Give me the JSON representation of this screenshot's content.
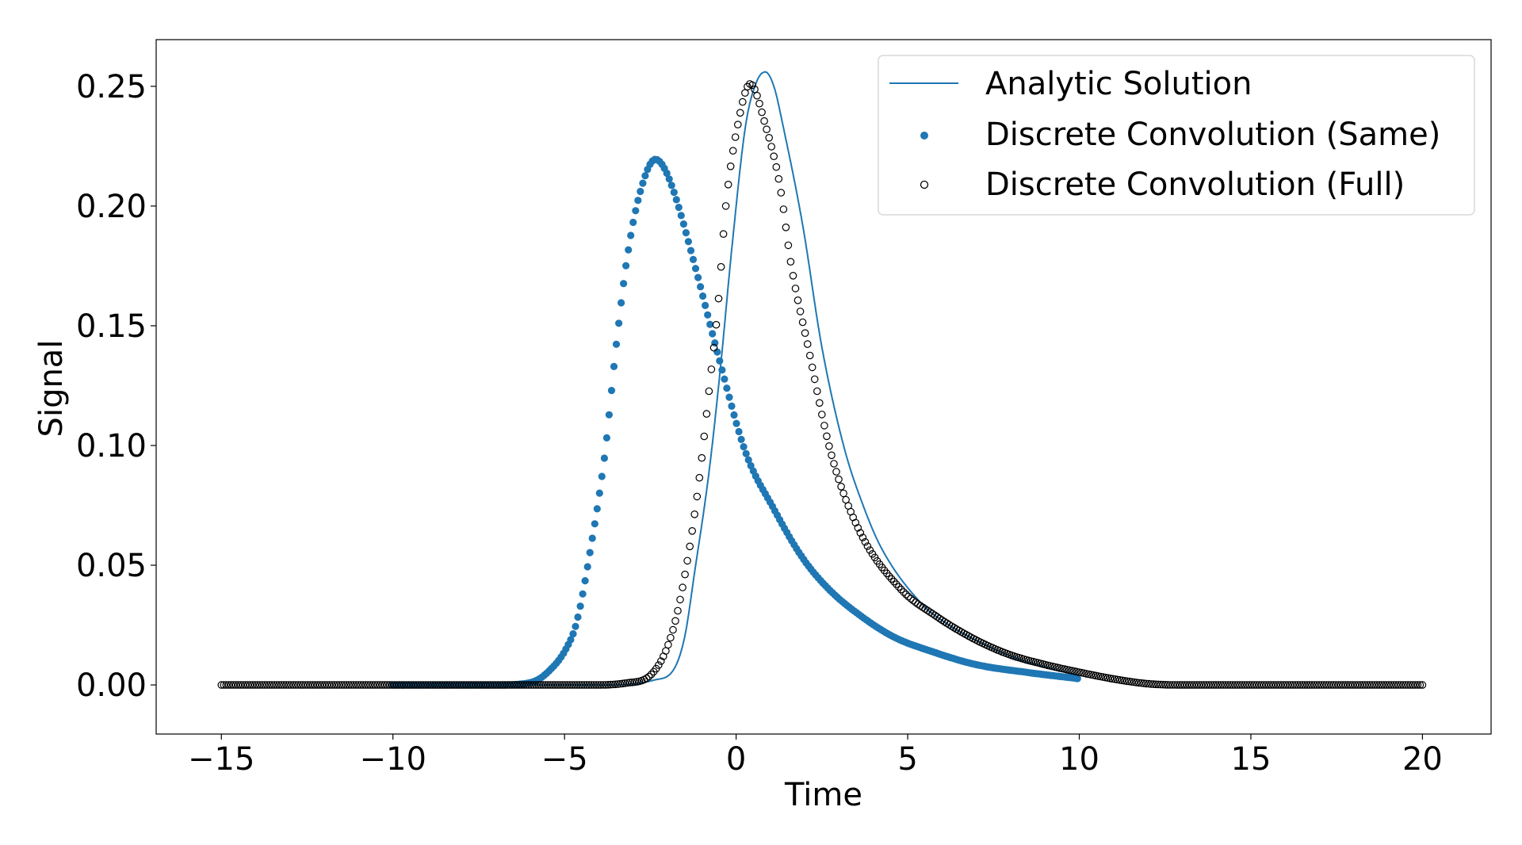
{
  "chart_data": {
    "type": "line",
    "title": "",
    "xlabel": "Time",
    "ylabel": "Signal",
    "xlim": [
      -16.9,
      22.0
    ],
    "ylim": [
      -0.0205,
      0.2695
    ],
    "xticks": [
      -15,
      -10,
      -5,
      0,
      5,
      10,
      15,
      20
    ],
    "xtick_labels": [
      "−15",
      "−10",
      "−5",
      "0",
      "5",
      "10",
      "15",
      "20"
    ],
    "yticks": [
      0.0,
      0.05,
      0.1,
      0.15,
      0.2,
      0.25
    ],
    "ytick_labels": [
      "0.00",
      "0.05",
      "0.10",
      "0.15",
      "0.20",
      "0.25"
    ],
    "grid": false,
    "legend_position": "top-right",
    "series": [
      {
        "name": "Analytic Solution",
        "kind": "line",
        "color": "#1f77b4",
        "points": [
          [
            -10,
            0
          ],
          [
            -4,
            0
          ],
          [
            -3,
            0.0005
          ],
          [
            -2.4,
            0.002
          ],
          [
            -1.84,
            0.006
          ],
          [
            -1.5,
            0.02
          ],
          [
            -1.2,
            0.048
          ],
          [
            -0.78,
            0.09
          ],
          [
            -0.46,
            0.132
          ],
          [
            -0.12,
            0.183
          ],
          [
            0.28,
            0.234
          ],
          [
            0.6,
            0.252
          ],
          [
            0.85,
            0.256
          ],
          [
            1.1,
            0.25
          ],
          [
            1.36,
            0.234
          ],
          [
            1.94,
            0.192
          ],
          [
            2.5,
            0.141
          ],
          [
            3.15,
            0.099
          ],
          [
            3.7,
            0.075
          ],
          [
            4.24,
            0.057
          ],
          [
            5.4,
            0.034
          ],
          [
            6.2,
            0.025
          ],
          [
            7,
            0.0185
          ],
          [
            8,
            0.012
          ],
          [
            9,
            0.0075
          ],
          [
            10,
            0.004
          ]
        ]
      },
      {
        "name": "Discrete Convolution (Same)",
        "kind": "scatter",
        "marker": "filled-circle",
        "color": "#1f77b4",
        "points": [
          [
            -10,
            0
          ],
          [
            -7,
            0
          ],
          [
            -6.2,
            0.0005
          ],
          [
            -5.8,
            0.002
          ],
          [
            -5.44,
            0.006
          ],
          [
            -5,
            0.014
          ],
          [
            -4.65,
            0.026
          ],
          [
            -4.24,
            0.057
          ],
          [
            -3.82,
            0.097
          ],
          [
            -3.5,
            0.141
          ],
          [
            -3.18,
            0.178
          ],
          [
            -2.83,
            0.204
          ],
          [
            -2.35,
            0.2195
          ],
          [
            -2.1,
            0.216
          ],
          [
            -1.77,
            0.204
          ],
          [
            -1.2,
            0.175
          ],
          [
            -0.53,
            0.138
          ],
          [
            0.28,
            0.097
          ],
          [
            1.1,
            0.0735
          ],
          [
            1.94,
            0.053
          ],
          [
            2.7,
            0.04
          ],
          [
            3.57,
            0.0295
          ],
          [
            4.6,
            0.02
          ],
          [
            5.7,
            0.014
          ],
          [
            6.96,
            0.0086
          ],
          [
            8.5,
            0.0052
          ],
          [
            10,
            0.0026
          ]
        ]
      },
      {
        "name": "Discrete Convolution (Full)",
        "kind": "scatter",
        "marker": "open-circle",
        "color": "#000000",
        "points": [
          [
            -15,
            0
          ],
          [
            -4,
            0
          ],
          [
            -3.2,
            0.0008
          ],
          [
            -2.5,
            0.004
          ],
          [
            -1.84,
            0.023
          ],
          [
            -1.36,
            0.057
          ],
          [
            -1.04,
            0.09
          ],
          [
            -0.78,
            0.124
          ],
          [
            -0.53,
            0.158
          ],
          [
            -0.3,
            0.2
          ],
          [
            0.05,
            0.234
          ],
          [
            0.41,
            0.251
          ],
          [
            0.85,
            0.234
          ],
          [
            1.27,
            0.209
          ],
          [
            1.61,
            0.175
          ],
          [
            2.1,
            0.141
          ],
          [
            2.76,
            0.097
          ],
          [
            3.57,
            0.065
          ],
          [
            4.8,
            0.04
          ],
          [
            5.8,
            0.029
          ],
          [
            6.96,
            0.019
          ],
          [
            8,
            0.0125
          ],
          [
            9,
            0.0085
          ],
          [
            10,
            0.0053
          ],
          [
            11,
            0.0025
          ],
          [
            12,
            0.0005
          ],
          [
            13,
            0
          ],
          [
            20,
            0
          ]
        ]
      }
    ]
  }
}
